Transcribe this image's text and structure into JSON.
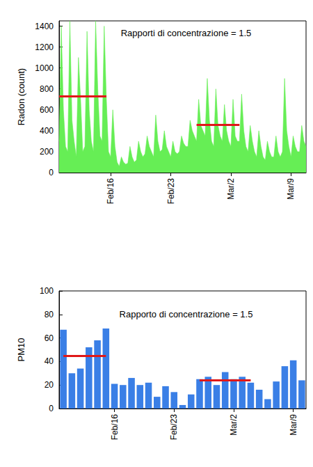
{
  "chart_data": [
    {
      "type": "area",
      "title": "Rapporti di concentrazione = 1.5",
      "y_label": "Radon (count)",
      "categories": [
        null,
        null,
        null,
        null,
        null,
        null,
        null,
        null,
        null,
        null,
        null,
        null,
        null,
        null,
        null,
        null,
        null,
        null,
        null,
        null,
        null,
        null,
        null,
        null,
        "Feb/16",
        null,
        null,
        null,
        null,
        null,
        null,
        null,
        null,
        null,
        null,
        null,
        null,
        null,
        null,
        null,
        null,
        null,
        null,
        null,
        null,
        null,
        null,
        null,
        null,
        null,
        null,
        null,
        "Feb/23",
        null,
        null,
        null,
        null,
        null,
        null,
        null,
        null,
        null,
        null,
        null,
        null,
        null,
        null,
        null,
        null,
        null,
        null,
        null,
        null,
        null,
        null,
        null,
        null,
        null,
        null,
        null,
        "Mar/2",
        null,
        null,
        null,
        null,
        null,
        null,
        null,
        null,
        null,
        null,
        null,
        null,
        null,
        null,
        null,
        null,
        null,
        null,
        null,
        null,
        null,
        null,
        null,
        null,
        null,
        null,
        null,
        "Mar/9",
        null,
        null,
        null,
        null,
        null,
        null,
        null
      ],
      "values": [
        300,
        1400,
        600,
        250,
        200,
        1450,
        500,
        300,
        150,
        1100,
        700,
        200,
        250,
        1350,
        600,
        300,
        200,
        1450,
        800,
        350,
        300,
        1400,
        700,
        200,
        150,
        600,
        250,
        100,
        60,
        150,
        100,
        80,
        90,
        250,
        150,
        100,
        120,
        300,
        200,
        150,
        180,
        350,
        250,
        200,
        150,
        550,
        300,
        200,
        220,
        400,
        250,
        200,
        150,
        300,
        200,
        180,
        200,
        350,
        280,
        250,
        250,
        500,
        400,
        350,
        300,
        700,
        450,
        400,
        350,
        900,
        500,
        300,
        250,
        800,
        450,
        350,
        300,
        650,
        400,
        300,
        250,
        700,
        350,
        300,
        300,
        750,
        400,
        250,
        200,
        450,
        300,
        200,
        150,
        400,
        250,
        150,
        120,
        300,
        200,
        150,
        150,
        350,
        200,
        150,
        200,
        900,
        400,
        250,
        150,
        350,
        250,
        200,
        200,
        450,
        300,
        250
      ],
      "color": "#66ee55",
      "ylim": [
        0,
        1450
      ],
      "yticks": [
        0,
        200,
        400,
        600,
        800,
        1000,
        1200,
        1400
      ],
      "grid": false,
      "reference_lines": [
        {
          "from": 0,
          "to": 22,
          "value": 730,
          "color": "#e01818"
        },
        {
          "from": 64,
          "to": 84,
          "value": 460,
          "color": "#e01818"
        }
      ]
    },
    {
      "type": "bar",
      "title": "Rapporto di concentrazione = 1.5",
      "y_label": "PM10",
      "categories": [
        null,
        null,
        null,
        null,
        null,
        null,
        "Feb/16",
        null,
        null,
        null,
        null,
        null,
        null,
        "Feb/23",
        null,
        null,
        null,
        null,
        null,
        null,
        "Mar/2",
        null,
        null,
        null,
        null,
        null,
        null,
        "Mar/9",
        null
      ],
      "values": [
        67,
        30,
        34,
        52,
        58,
        68,
        21,
        20,
        26,
        20,
        22,
        10,
        19,
        14,
        3,
        12,
        25,
        27,
        20,
        31,
        25,
        27,
        22,
        16,
        8,
        23,
        36,
        41,
        24
      ],
      "color": "#3a7fe6",
      "ylim": [
        0,
        100
      ],
      "yticks": [
        0,
        20,
        40,
        60,
        80,
        100
      ],
      "grid": false,
      "reference_lines": [
        {
          "from": 0,
          "to": 5,
          "value": 45,
          "color": "#e01818"
        },
        {
          "from": 16,
          "to": 22,
          "value": 24,
          "color": "#e01818"
        }
      ]
    }
  ]
}
